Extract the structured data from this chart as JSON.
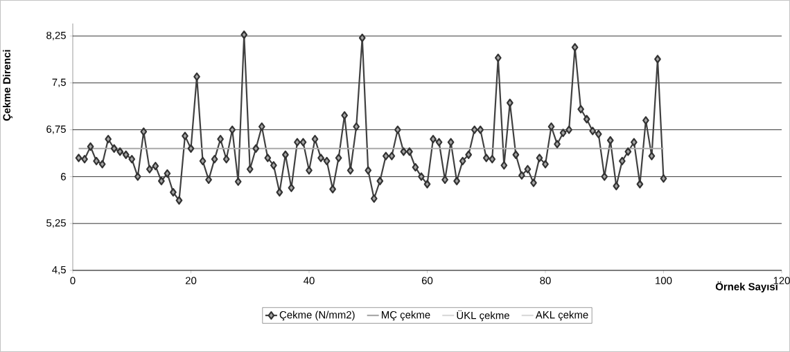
{
  "chart_data": {
    "type": "line",
    "xlabel": "Örnek Sayısı",
    "ylabel": "Çekme Direnci",
    "x": [
      1,
      2,
      3,
      4,
      5,
      6,
      7,
      8,
      9,
      10,
      11,
      12,
      13,
      14,
      15,
      16,
      17,
      18,
      19,
      20,
      21,
      22,
      23,
      24,
      25,
      26,
      27,
      28,
      29,
      30,
      31,
      32,
      33,
      34,
      35,
      36,
      37,
      38,
      39,
      40,
      41,
      42,
      43,
      44,
      45,
      46,
      47,
      48,
      49,
      50,
      51,
      52,
      53,
      54,
      55,
      56,
      57,
      58,
      59,
      60,
      61,
      62,
      63,
      64,
      65,
      66,
      67,
      68,
      69,
      70,
      71,
      72,
      73,
      74,
      75,
      76,
      77,
      78,
      79,
      80,
      81,
      82,
      83,
      84,
      85,
      86,
      87,
      88,
      89,
      90,
      91,
      92,
      93,
      94,
      95,
      96,
      97,
      98,
      99,
      100
    ],
    "series": [
      {
        "name": "Çekme (N/mm2)",
        "color": "#404040",
        "values": [
          6.3,
          6.28,
          6.48,
          6.25,
          6.2,
          6.6,
          6.45,
          6.4,
          6.35,
          6.28,
          6.0,
          6.72,
          6.12,
          6.17,
          5.93,
          6.05,
          5.75,
          5.62,
          6.65,
          6.45,
          7.6,
          6.25,
          5.95,
          6.28,
          6.6,
          6.28,
          6.75,
          5.92,
          8.27,
          6.12,
          6.45,
          6.8,
          6.3,
          6.18,
          5.75,
          6.35,
          5.82,
          6.55,
          6.55,
          6.1,
          6.6,
          6.3,
          6.25,
          5.8,
          6.3,
          6.98,
          6.1,
          6.8,
          8.22,
          6.1,
          5.65,
          5.93,
          6.33,
          6.33,
          6.75,
          6.4,
          6.4,
          6.15,
          6.0,
          5.88,
          6.6,
          6.55,
          5.95,
          6.55,
          5.93,
          6.25,
          6.35,
          6.75,
          6.75,
          6.3,
          6.28,
          7.9,
          6.18,
          7.18,
          6.35,
          6.02,
          6.12,
          5.9,
          6.3,
          6.2,
          6.8,
          6.52,
          6.7,
          6.75,
          8.07,
          7.08,
          6.92,
          6.73,
          6.68,
          6.0,
          6.58,
          5.85,
          6.25,
          6.4,
          6.55,
          5.88,
          6.9,
          6.33,
          7.88,
          5.97
        ]
      },
      {
        "name": "MÇ çekme",
        "color": "#a8a8a8",
        "marker": "none",
        "x": [
          1,
          100
        ],
        "values": [
          6.45,
          6.45
        ]
      },
      {
        "name": "ÜKL çekme",
        "color": "#d9d9d9",
        "marker": "none",
        "values": [
          null,
          null,
          null,
          null,
          null,
          null,
          null,
          null,
          null,
          null,
          null,
          null,
          null,
          null,
          null,
          null,
          null,
          null,
          null,
          null,
          null,
          null,
          null,
          null,
          null,
          null,
          null,
          null,
          null,
          null,
          null,
          null,
          null,
          null,
          null,
          null,
          null,
          null,
          null,
          null,
          null,
          null,
          null,
          null,
          null,
          null,
          null,
          null,
          null,
          null,
          null,
          null,
          null,
          null,
          null,
          null,
          null,
          null,
          null,
          null,
          null,
          null,
          null,
          null,
          null,
          null,
          null,
          null,
          null,
          null,
          null,
          null,
          null,
          null,
          null,
          null,
          null,
          null,
          null,
          null,
          null,
          null,
          null,
          null,
          null,
          null,
          null,
          null,
          null,
          null,
          null,
          null,
          null,
          null,
          null,
          null,
          null,
          null,
          null,
          null
        ]
      },
      {
        "name": "AKL çekme",
        "color": "#d9d9d9",
        "marker": "none",
        "values": [
          null,
          null,
          null,
          null,
          null,
          null,
          null,
          null,
          null,
          null,
          null,
          null,
          null,
          null,
          null,
          null,
          null,
          null,
          null,
          null,
          null,
          null,
          null,
          null,
          null,
          null,
          null,
          null,
          null,
          null,
          null,
          null,
          null,
          null,
          null,
          null,
          null,
          null,
          null,
          null,
          null,
          null,
          null,
          null,
          null,
          null,
          null,
          null,
          null,
          null,
          null,
          null,
          null,
          null,
          null,
          null,
          null,
          null,
          null,
          null,
          null,
          null,
          null,
          null,
          null,
          null,
          null,
          null,
          null,
          null,
          null,
          null,
          null,
          null,
          null,
          null,
          null,
          null,
          null,
          null,
          null,
          null,
          null,
          null,
          null,
          null,
          null,
          null,
          null,
          null,
          null,
          null,
          null,
          null,
          null,
          null,
          null,
          null,
          null,
          null
        ]
      }
    ],
    "xlim": [
      0,
      120
    ],
    "xticks": [
      0,
      20,
      40,
      60,
      80,
      100,
      120
    ],
    "ylim": [
      4.5,
      8.45
    ],
    "yticks": [
      {
        "value": 4.5,
        "label": "4,5"
      },
      {
        "value": 5.25,
        "label": "5,25"
      },
      {
        "value": 6,
        "label": "6"
      },
      {
        "value": 6.75,
        "label": "6,75"
      },
      {
        "value": 7.5,
        "label": "7,5"
      },
      {
        "value": 8.25,
        "label": "8,25"
      }
    ],
    "grid": "y",
    "legend": "bottom",
    "marker": "diamond"
  }
}
